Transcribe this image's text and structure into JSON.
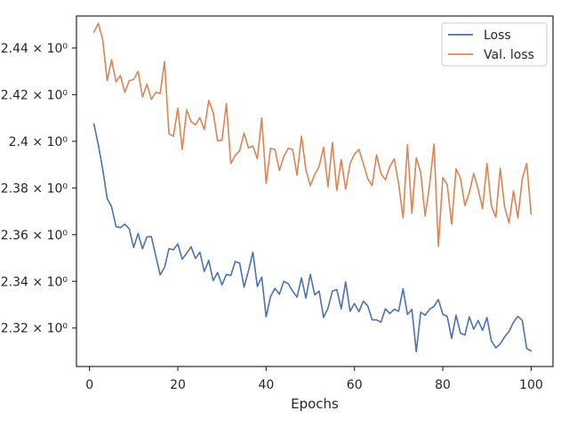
{
  "chart_data": {
    "type": "line",
    "title": "",
    "xlabel": "Epochs",
    "ylabel": "",
    "xlim": [
      -2.95,
      104.95
    ],
    "ylim": [
      2.3035,
      2.4537
    ],
    "grid": false,
    "legend_placement": "top-right",
    "x_ticks": [
      0,
      20,
      40,
      60,
      80,
      100
    ],
    "x_tick_labels": [
      "0",
      "20",
      "40",
      "60",
      "80",
      "100"
    ],
    "y_ticks": [
      2.32,
      2.34,
      2.36,
      2.38,
      2.4,
      2.42,
      2.44
    ],
    "y_tick_labels": [
      "2.32 × 10⁰",
      "2.34 × 10⁰",
      "2.36 × 10⁰",
      "2.38 × 10⁰",
      "2.4 × 10⁰",
      "2.42 × 10⁰",
      "2.44 × 10⁰"
    ],
    "x": [
      1,
      2,
      3,
      4,
      5,
      6,
      7,
      8,
      9,
      10,
      11,
      12,
      13,
      14,
      15,
      16,
      17,
      18,
      19,
      20,
      21,
      22,
      23,
      24,
      25,
      26,
      27,
      28,
      29,
      30,
      31,
      32,
      33,
      34,
      35,
      36,
      37,
      38,
      39,
      40,
      41,
      42,
      43,
      44,
      45,
      46,
      47,
      48,
      49,
      50,
      51,
      52,
      53,
      54,
      55,
      56,
      57,
      58,
      59,
      60,
      61,
      62,
      63,
      64,
      65,
      66,
      67,
      68,
      69,
      70,
      71,
      72,
      73,
      74,
      75,
      76,
      77,
      78,
      79,
      80,
      81,
      82,
      83,
      84,
      85,
      86,
      87,
      88,
      89,
      90,
      91,
      92,
      93,
      94,
      95,
      96,
      97,
      98,
      99,
      100
    ],
    "series": [
      {
        "name": "Loss",
        "color": "#4c72b0",
        "values": [
          2.4075,
          2.3985,
          2.388,
          2.3755,
          2.372,
          2.3635,
          2.363,
          2.3645,
          2.3625,
          2.3545,
          2.3605,
          2.354,
          2.359,
          2.3592,
          2.351,
          2.3428,
          2.346,
          2.354,
          2.3535,
          2.356,
          2.3495,
          2.352,
          2.3548,
          2.3498,
          2.3525,
          2.3442,
          2.349,
          2.3403,
          2.3438,
          2.3385,
          2.343,
          2.3425,
          2.3485,
          2.3478,
          2.3375,
          2.3445,
          2.3525,
          2.3378,
          2.3418,
          2.3248,
          2.3335,
          2.337,
          2.3345,
          2.34,
          2.339,
          2.3358,
          2.3332,
          2.3415,
          2.3328,
          2.343,
          2.3342,
          2.3358,
          2.3245,
          2.3285,
          2.3358,
          2.3365,
          2.3282,
          2.3398,
          2.3272,
          2.3305,
          2.327,
          2.3315,
          2.3295,
          2.3235,
          2.3235,
          2.3225,
          2.3282,
          2.3262,
          2.328,
          2.3272,
          2.3368,
          2.3258,
          2.328,
          2.3098,
          2.3268,
          2.3255,
          2.328,
          2.3292,
          2.3322,
          2.3258,
          2.325,
          2.3155,
          2.3255,
          2.3178,
          2.317,
          2.3248,
          2.3195,
          2.3232,
          2.319,
          2.3245,
          2.3145,
          2.3115,
          2.3132,
          2.3162,
          2.3185,
          2.3225,
          2.325,
          2.3232,
          2.3112,
          2.3102
        ]
      },
      {
        "name": "Val. loss",
        "color": "#dd8452",
        "values": [
          2.4468,
          2.4505,
          2.4435,
          2.426,
          2.435,
          2.4255,
          2.4282,
          2.421,
          2.426,
          2.4265,
          2.43,
          2.419,
          2.4245,
          2.418,
          2.421,
          2.4205,
          2.4342,
          2.4032,
          2.4022,
          2.4142,
          2.3965,
          2.4135,
          2.4085,
          2.407,
          2.4102,
          2.405,
          2.4175,
          2.4125,
          2.4002,
          2.4005,
          2.4162,
          2.3905,
          2.394,
          2.396,
          2.4035,
          2.3972,
          2.398,
          2.3925,
          2.41,
          2.382,
          2.397,
          2.3965,
          2.3875,
          2.3935,
          2.397,
          2.3965,
          2.3855,
          2.4022,
          2.3878,
          2.381,
          2.3858,
          2.3892,
          2.3975,
          2.3805,
          2.3995,
          2.379,
          2.3922,
          2.3795,
          2.3905,
          2.3945,
          2.3965,
          2.3905,
          2.384,
          2.381,
          2.3942,
          2.3862,
          2.3835,
          2.3892,
          2.3925,
          2.3818,
          2.3672,
          2.3985,
          2.3692,
          2.393,
          2.3865,
          2.368,
          2.3812,
          2.3988,
          2.355,
          2.3845,
          2.3815,
          2.3645,
          2.3882,
          2.3842,
          2.3725,
          2.378,
          2.3862,
          2.3795,
          2.3712,
          2.3905,
          2.3722,
          2.3675,
          2.3885,
          2.3718,
          2.365,
          2.3788,
          2.3672,
          2.384,
          2.3905,
          2.3688
        ]
      }
    ]
  }
}
